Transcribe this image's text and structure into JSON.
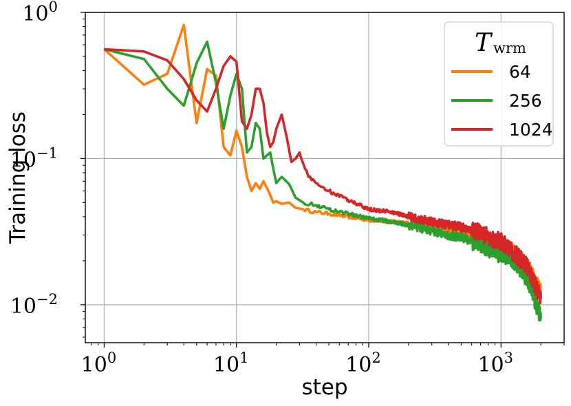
{
  "chart_data": {
    "type": "line",
    "xlabel": "step",
    "ylabel": "Training loss",
    "xscale": "log",
    "yscale": "log",
    "xlim": [
      0.72,
      3000
    ],
    "ylim": [
      0.0055,
      1.0
    ],
    "grid": true,
    "x_ticks": [
      {
        "base": "10",
        "exp": "0"
      },
      {
        "base": "10",
        "exp": "1"
      },
      {
        "base": "10",
        "exp": "2"
      },
      {
        "base": "10",
        "exp": "3"
      }
    ],
    "y_ticks": [
      {
        "base": "10",
        "exp": "0"
      },
      {
        "base": "10",
        "exp": "−1"
      },
      {
        "base": "10",
        "exp": "−2"
      }
    ],
    "legend": {
      "title_main": "T",
      "title_sub": "wrm",
      "placement": "top-right"
    },
    "series": [
      {
        "name": "64",
        "color": "#ff7f0e",
        "points": [
          [
            1,
            0.56
          ],
          [
            2,
            0.32
          ],
          [
            3,
            0.38
          ],
          [
            4,
            0.82
          ],
          [
            5,
            0.175
          ],
          [
            6,
            0.41
          ],
          [
            7,
            0.37
          ],
          [
            8,
            0.12
          ],
          [
            9,
            0.105
          ],
          [
            10,
            0.155
          ],
          [
            11,
            0.12
          ],
          [
            12,
            0.075
          ],
          [
            13,
            0.06
          ],
          [
            14,
            0.068
          ],
          [
            15,
            0.062
          ],
          [
            16,
            0.07
          ],
          [
            17,
            0.063
          ],
          [
            18,
            0.056
          ],
          [
            19,
            0.05
          ],
          [
            20,
            0.051
          ],
          [
            22,
            0.049
          ],
          [
            25,
            0.05
          ],
          [
            28,
            0.046
          ],
          [
            32,
            0.045
          ],
          [
            40,
            0.043
          ],
          [
            50,
            0.042
          ],
          [
            70,
            0.04
          ],
          [
            100,
            0.038
          ],
          [
            150,
            0.037
          ],
          [
            200,
            0.036
          ],
          [
            300,
            0.034
          ],
          [
            400,
            0.033
          ],
          [
            500,
            0.032
          ],
          [
            700,
            0.029
          ],
          [
            1000,
            0.025
          ],
          [
            1300,
            0.022
          ],
          [
            1600,
            0.018
          ],
          [
            2000,
            0.012
          ]
        ]
      },
      {
        "name": "256",
        "color": "#2ca02c",
        "points": [
          [
            1,
            0.56
          ],
          [
            2,
            0.48
          ],
          [
            3,
            0.3
          ],
          [
            4,
            0.23
          ],
          [
            5,
            0.45
          ],
          [
            6,
            0.63
          ],
          [
            7,
            0.33
          ],
          [
            8,
            0.16
          ],
          [
            9,
            0.27
          ],
          [
            10,
            0.38
          ],
          [
            11,
            0.3
          ],
          [
            12,
            0.11
          ],
          [
            13,
            0.12
          ],
          [
            14,
            0.175
          ],
          [
            15,
            0.16
          ],
          [
            16,
            0.1
          ],
          [
            17,
            0.105
          ],
          [
            18,
            0.11
          ],
          [
            19,
            0.085
          ],
          [
            20,
            0.068
          ],
          [
            22,
            0.075
          ],
          [
            25,
            0.067
          ],
          [
            28,
            0.054
          ],
          [
            32,
            0.05
          ],
          [
            40,
            0.048
          ],
          [
            50,
            0.045
          ],
          [
            70,
            0.042
          ],
          [
            100,
            0.039
          ],
          [
            150,
            0.037
          ],
          [
            200,
            0.035
          ],
          [
            300,
            0.032
          ],
          [
            400,
            0.03
          ],
          [
            500,
            0.029
          ],
          [
            700,
            0.026
          ],
          [
            1000,
            0.022
          ],
          [
            1300,
            0.019
          ],
          [
            1600,
            0.015
          ],
          [
            2000,
            0.008
          ]
        ]
      },
      {
        "name": "1024",
        "color": "#d62728",
        "points": [
          [
            1,
            0.56
          ],
          [
            2,
            0.54
          ],
          [
            3,
            0.47
          ],
          [
            4,
            0.35
          ],
          [
            5,
            0.25
          ],
          [
            6,
            0.21
          ],
          [
            7,
            0.3
          ],
          [
            8,
            0.43
          ],
          [
            9,
            0.5
          ],
          [
            10,
            0.46
          ],
          [
            11,
            0.18
          ],
          [
            12,
            0.16
          ],
          [
            13,
            0.2
          ],
          [
            14,
            0.3
          ],
          [
            15,
            0.3
          ],
          [
            16,
            0.24
          ],
          [
            17,
            0.15
          ],
          [
            18,
            0.12
          ],
          [
            19,
            0.13
          ],
          [
            20,
            0.16
          ],
          [
            22,
            0.2
          ],
          [
            24,
            0.14
          ],
          [
            26,
            0.095
          ],
          [
            28,
            0.1
          ],
          [
            30,
            0.11
          ],
          [
            35,
            0.075
          ],
          [
            40,
            0.068
          ],
          [
            50,
            0.06
          ],
          [
            70,
            0.052
          ],
          [
            100,
            0.045
          ],
          [
            150,
            0.043
          ],
          [
            200,
            0.04
          ],
          [
            300,
            0.037
          ],
          [
            400,
            0.035
          ],
          [
            500,
            0.034
          ],
          [
            700,
            0.031
          ],
          [
            1000,
            0.027
          ],
          [
            1300,
            0.022
          ],
          [
            1600,
            0.018
          ],
          [
            2000,
            0.011
          ]
        ]
      }
    ]
  }
}
